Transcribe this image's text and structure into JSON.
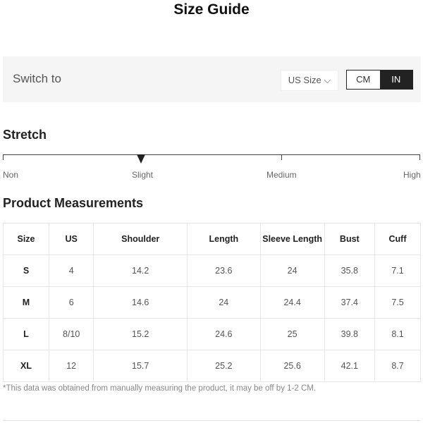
{
  "title": "Size Guide",
  "switch": {
    "label": "Switch to",
    "select_value": "US Size",
    "units": [
      "CM",
      "IN"
    ],
    "active_unit": "IN"
  },
  "stretch": {
    "heading": "Stretch",
    "levels": [
      "Non",
      "Slight",
      "Medium",
      "High"
    ],
    "selected": "Slight"
  },
  "measurements": {
    "heading": "Product Measurements",
    "columns": [
      "Size",
      "US",
      "Shoulder",
      "Length",
      "Sleeve Length",
      "Bust",
      "Cuff"
    ],
    "rows": [
      [
        "S",
        "4",
        "14.2",
        "23.6",
        "24",
        "35.8",
        "7.1"
      ],
      [
        "M",
        "6",
        "14.6",
        "24",
        "24.4",
        "37.4",
        "7.5"
      ],
      [
        "L",
        "8/10",
        "15.2",
        "24.6",
        "25",
        "39.8",
        "8.1"
      ],
      [
        "XL",
        "12",
        "15.7",
        "25.2",
        "25.6",
        "42.1",
        "8.7"
      ]
    ]
  },
  "note": "*This data was obtained from manually measuring the product, it may be off by 1-2 CM."
}
